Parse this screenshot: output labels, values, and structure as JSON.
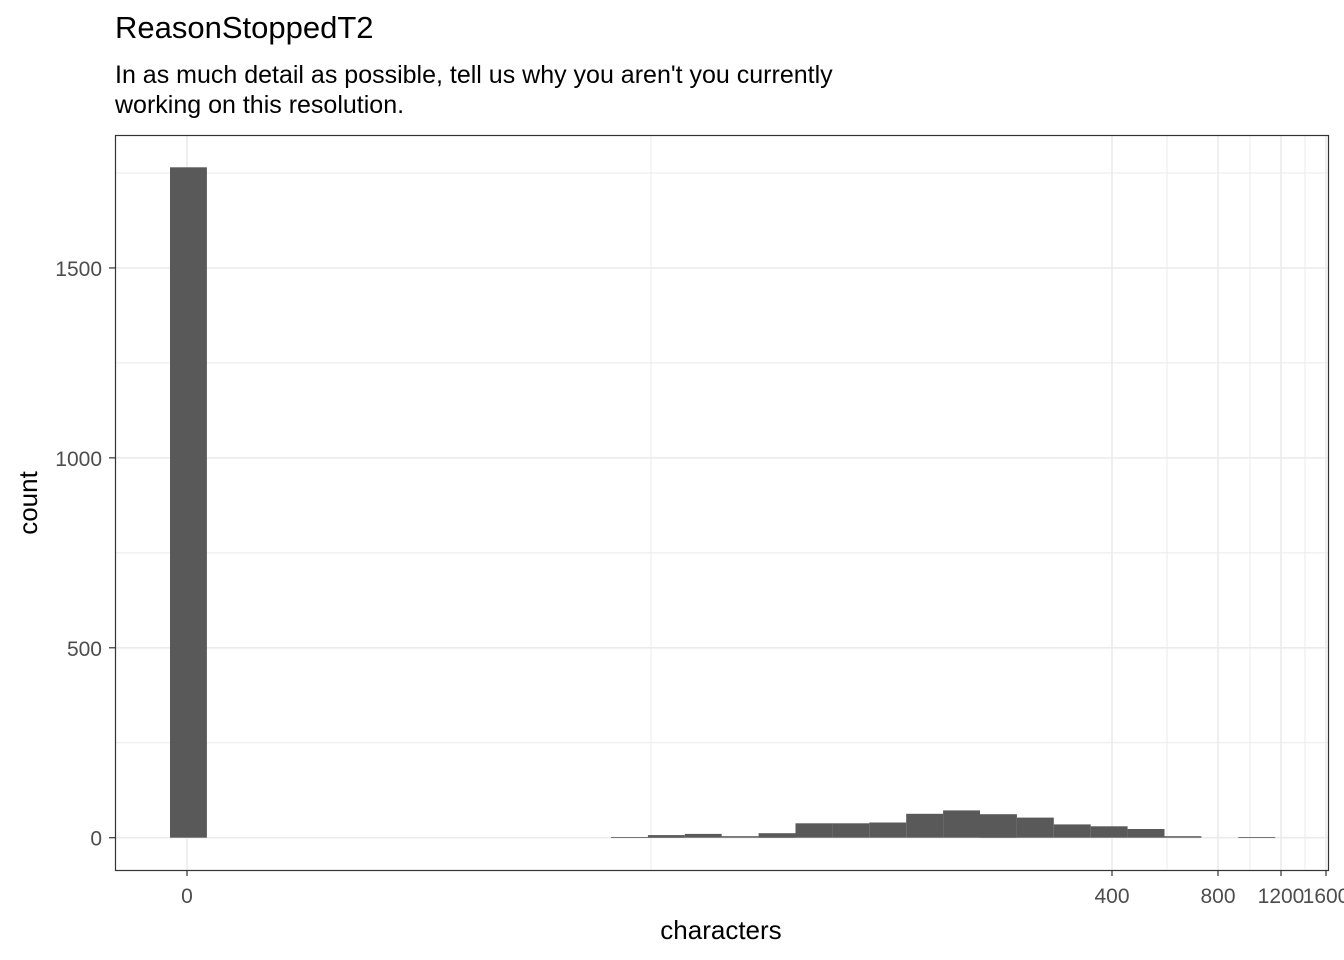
{
  "chart_data": {
    "type": "bar",
    "title": "ReasonStoppedT2",
    "subtitle_lines": [
      "In as much detail as possible, tell us why you aren't you currently",
      "working on this resolution."
    ],
    "xlabel": "characters",
    "ylabel": "count",
    "x_scale": "pseudo-log",
    "x_ticks": [
      "0",
      "400",
      "800",
      "1200",
      "1600"
    ],
    "y_ticks": [
      "0",
      "500",
      "1000",
      "1500"
    ],
    "ylim": [
      -85,
      1850
    ],
    "grid": true,
    "bars": [
      {
        "bin": "0",
        "count": 1765
      },
      {
        "bin": "b12",
        "count": 2
      },
      {
        "bin": "b13",
        "count": 7
      },
      {
        "bin": "b14",
        "count": 10
      },
      {
        "bin": "b15",
        "count": 4
      },
      {
        "bin": "b16",
        "count": 12
      },
      {
        "bin": "b17",
        "count": 38
      },
      {
        "bin": "b18",
        "count": 38
      },
      {
        "bin": "b19",
        "count": 40
      },
      {
        "bin": "b20",
        "count": 63
      },
      {
        "bin": "b21",
        "count": 72
      },
      {
        "bin": "b22",
        "count": 62
      },
      {
        "bin": "b23",
        "count": 53
      },
      {
        "bin": "b24",
        "count": 35
      },
      {
        "bin": "b25",
        "count": 30
      },
      {
        "bin": "b26",
        "count": 23
      },
      {
        "bin": "b27",
        "count": 4
      },
      {
        "bin": "b28",
        "count": 0
      },
      {
        "bin": "b29",
        "count": 2
      }
    ],
    "colors": {
      "bar": "#595959",
      "grid": "#ebebeb",
      "panel_border": "#333333",
      "axis_text": "#4d4d4d"
    }
  }
}
